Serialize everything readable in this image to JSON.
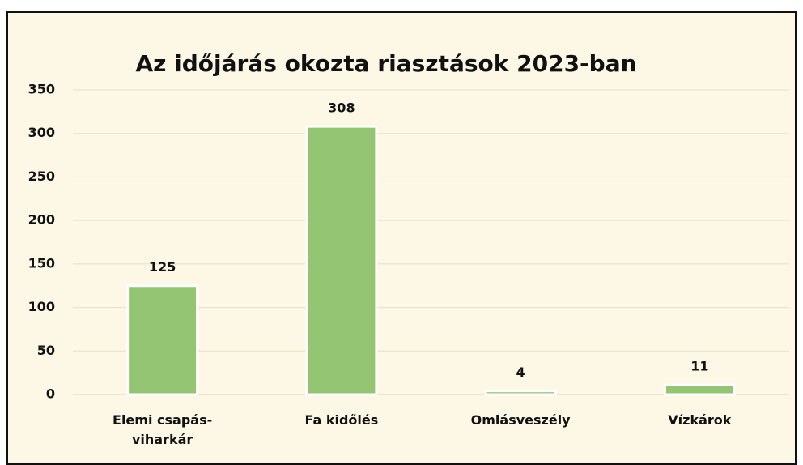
{
  "chart_data": {
    "type": "bar",
    "title": "Az időjárás okozta riasztások 2023-ban",
    "categories": [
      "Elemi csapás-viharkár",
      "Fa kidőlés",
      "Omlásveszély",
      "Vízkárok"
    ],
    "values": [
      125,
      308,
      4,
      11
    ],
    "color": "#93c572",
    "ylim": [
      0,
      350
    ],
    "yticks": [
      0,
      50,
      100,
      150,
      200,
      250,
      300,
      350
    ],
    "grid": true
  }
}
